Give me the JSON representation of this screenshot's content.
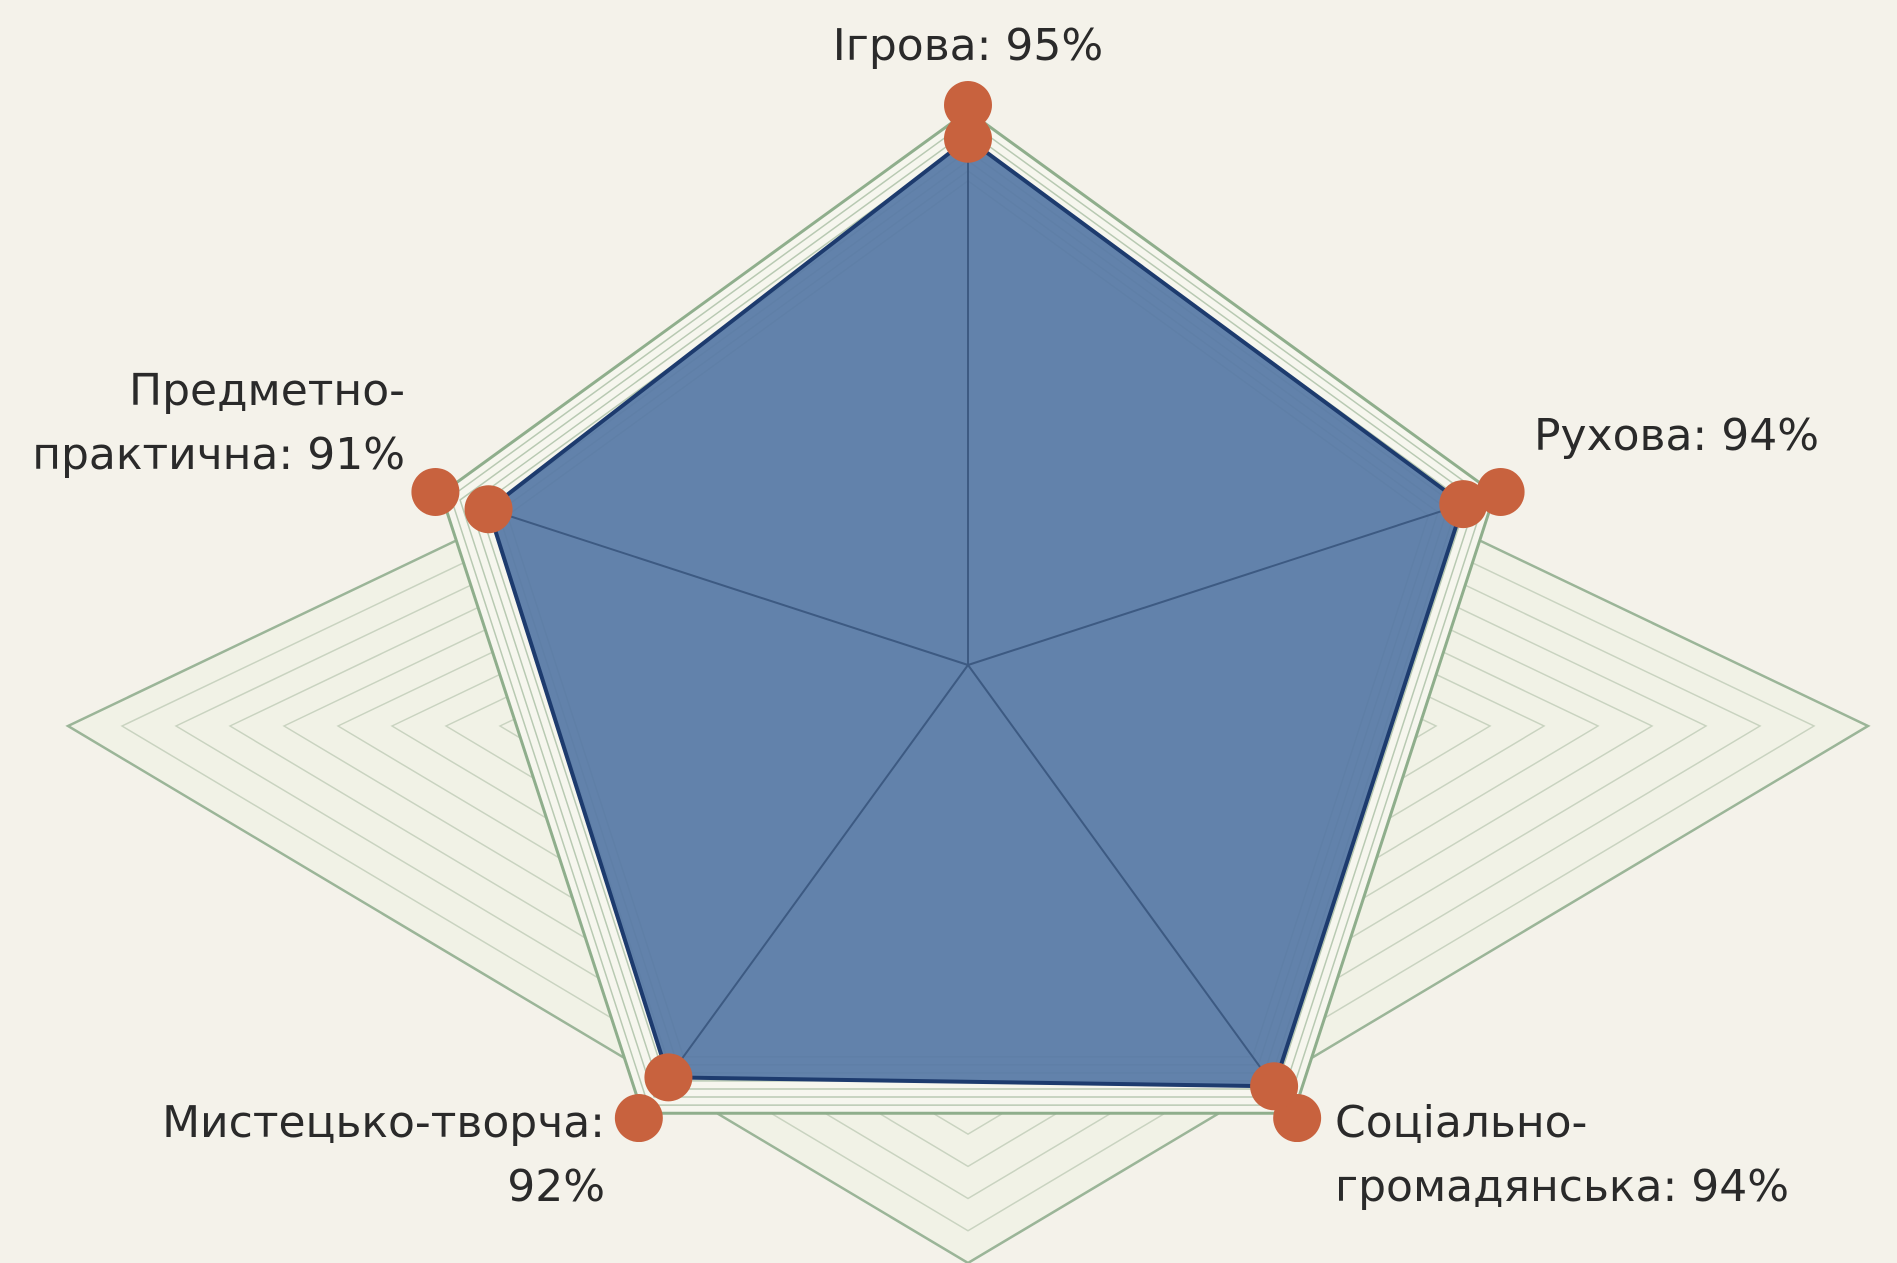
{
  "chart_data": {
    "type": "radar",
    "categories": [
      [
        "Ігрова: 95%"
      ],
      [
        "Рухова: 94%"
      ],
      [
        "Соціально-",
        "громадянська: 94%"
      ],
      [
        "Мистецько-творча:",
        "92%"
      ],
      [
        "Предметно-",
        "практична: 91%"
      ]
    ],
    "values": [
      95,
      94,
      94,
      92,
      91
    ],
    "rlim": [
      0,
      100
    ],
    "color": "#5a7ba6",
    "marker_color": "#c8623e"
  }
}
